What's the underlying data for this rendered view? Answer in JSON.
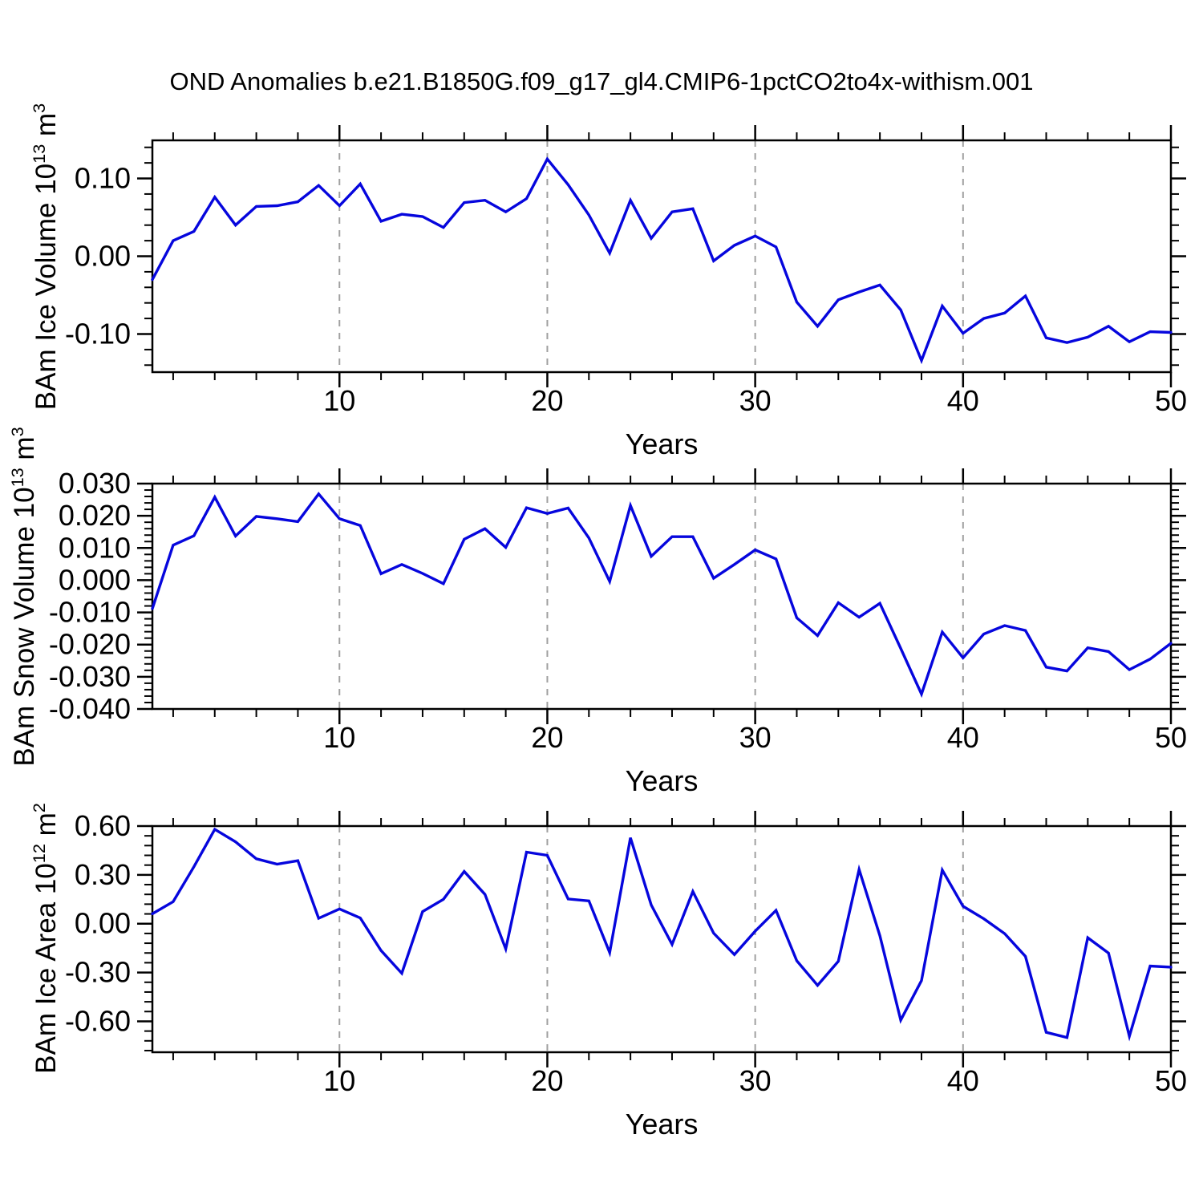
{
  "title": "OND Anomalies b.e21.B1850G.f09_g17_gl4.CMIP6-1pctCO2to4x-withism.001",
  "colors": {
    "line": "#0606dd",
    "grid": "#a0a0a0",
    "axis": "#000000",
    "text": "#000000",
    "background": "#ffffff"
  },
  "chart_data": {
    "type": "line",
    "title": "OND Anomalies b.e21.B1850G.f09_g17_gl4.CMIP6-1pctCO2to4x-withism.001",
    "xlabel": "Years",
    "xlim": [
      1,
      50
    ],
    "x_ticks_major": [
      10,
      20,
      30,
      40,
      50
    ],
    "x_minor_step": 2,
    "x_gridlines": [
      10,
      20,
      30,
      40
    ],
    "grid_style": "dashed-vertical",
    "legend": "none",
    "x": [
      1,
      2,
      3,
      4,
      5,
      6,
      7,
      8,
      9,
      10,
      11,
      12,
      13,
      14,
      15,
      16,
      17,
      18,
      19,
      20,
      21,
      22,
      23,
      24,
      25,
      26,
      27,
      28,
      29,
      30,
      31,
      32,
      33,
      34,
      35,
      36,
      37,
      38,
      39,
      40,
      41,
      42,
      43,
      44,
      45,
      46,
      47,
      48,
      49,
      50
    ],
    "panels": [
      {
        "name": "ice-volume",
        "ylabel_pre": "BAm Ice Volume 10",
        "ylabel_exp": "13",
        "ylabel_unit": " m",
        "ylabel_unit_exp": "3",
        "ylim": [
          -0.149,
          0.149
        ],
        "yticks": [
          {
            "v": 0.1,
            "label": "0.10"
          },
          {
            "v": 0.0,
            "label": "0.00"
          },
          {
            "v": -0.1,
            "label": "-0.10"
          }
        ],
        "y_minor_step": 0.02,
        "values": [
          -0.03,
          0.02,
          0.032,
          0.076,
          0.04,
          0.064,
          0.065,
          0.07,
          0.091,
          0.065,
          0.093,
          0.045,
          0.054,
          0.051,
          0.037,
          0.069,
          0.072,
          0.057,
          0.074,
          0.125,
          0.092,
          0.053,
          0.004,
          0.072,
          0.023,
          0.057,
          0.061,
          -0.006,
          0.014,
          0.026,
          0.012,
          -0.059,
          -0.09,
          -0.056,
          -0.046,
          -0.037,
          -0.069,
          -0.134,
          -0.064,
          -0.099,
          -0.08,
          -0.073,
          -0.051,
          -0.105,
          -0.111,
          -0.104,
          -0.09,
          -0.11,
          -0.097,
          -0.098
        ]
      },
      {
        "name": "snow-volume",
        "ylabel_pre": "BAm Snow Volume 10",
        "ylabel_exp": "13",
        "ylabel_unit": " m",
        "ylabel_unit_exp": "3",
        "ylim": [
          -0.04,
          0.03
        ],
        "yticks": [
          {
            "v": 0.03,
            "label": "0.030"
          },
          {
            "v": 0.02,
            "label": "0.020"
          },
          {
            "v": 0.01,
            "label": "0.010"
          },
          {
            "v": 0.0,
            "label": "0.000"
          },
          {
            "v": -0.01,
            "label": "-0.010"
          },
          {
            "v": -0.02,
            "label": "-0.020"
          },
          {
            "v": -0.03,
            "label": "-0.030"
          },
          {
            "v": -0.04,
            "label": "-0.040"
          }
        ],
        "y_minor_step": 0.002,
        "values": [
          -0.0088,
          0.0109,
          0.0138,
          0.0258,
          0.0137,
          0.0198,
          0.0191,
          0.0182,
          0.0268,
          0.0191,
          0.017,
          0.002,
          0.0049,
          0.0021,
          -0.0011,
          0.0127,
          0.016,
          0.0102,
          0.0225,
          0.0207,
          0.0224,
          0.0131,
          -0.0004,
          0.0232,
          0.0074,
          0.0135,
          0.0135,
          0.0006,
          0.0049,
          0.0094,
          0.0066,
          -0.0117,
          -0.0172,
          -0.007,
          -0.0115,
          -0.0072,
          -0.0212,
          -0.0354,
          -0.0161,
          -0.0241,
          -0.0167,
          -0.0141,
          -0.0156,
          -0.027,
          -0.0282,
          -0.021,
          -0.0222,
          -0.0278,
          -0.0245,
          -0.0196
        ]
      },
      {
        "name": "ice-area",
        "ylabel_pre": "BAm Ice Area 10",
        "ylabel_exp": "12",
        "ylabel_unit": " m",
        "ylabel_unit_exp": "2",
        "ylim": [
          -0.79,
          0.6
        ],
        "yticks": [
          {
            "v": 0.6,
            "label": "0.60"
          },
          {
            "v": 0.3,
            "label": "0.30"
          },
          {
            "v": 0.0,
            "label": "0.00"
          },
          {
            "v": -0.3,
            "label": "-0.30"
          },
          {
            "v": -0.6,
            "label": "-0.60"
          }
        ],
        "y_minor_step": 0.06,
        "values": [
          0.061,
          0.135,
          0.35,
          0.58,
          0.503,
          0.399,
          0.366,
          0.387,
          0.033,
          0.091,
          0.035,
          -0.165,
          -0.305,
          0.074,
          0.15,
          0.321,
          0.18,
          -0.155,
          0.44,
          0.42,
          0.152,
          0.14,
          -0.178,
          0.528,
          0.115,
          -0.127,
          0.198,
          -0.058,
          -0.19,
          -0.046,
          0.082,
          -0.228,
          -0.379,
          -0.231,
          0.333,
          -0.074,
          -0.593,
          -0.35,
          0.33,
          0.107,
          0.03,
          -0.061,
          -0.201,
          -0.668,
          -0.7,
          -0.086,
          -0.181,
          -0.692,
          -0.26,
          -0.267
        ]
      }
    ]
  }
}
